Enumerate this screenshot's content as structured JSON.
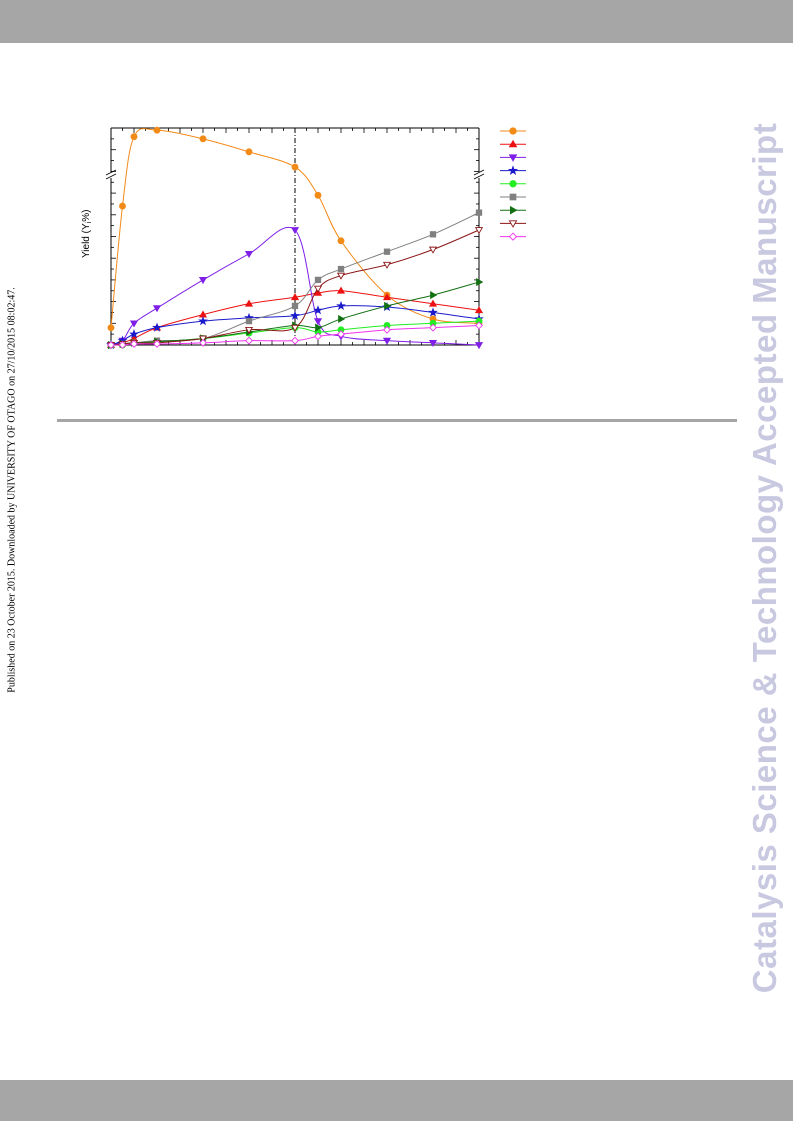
{
  "page": {
    "side_note": "Published on 23 October 2015. Downloaded by UNIVERSITY OF OTAGO on 27/10/2015 08:02:47.",
    "watermark": "Catalysis Science & Technology Accepted Manuscript",
    "colors": {
      "bars": "#a6a6a6",
      "watermark": "#c8c8e0"
    }
  },
  "chart_data": {
    "type": "line",
    "title": "",
    "xlabel": "",
    "ylabel": "Yield (Y",
    "ylabel_sub": "i",
    "ylabel_end": "%)",
    "axis_break": true,
    "reaction_switch_x": 8,
    "xlim": [
      0,
      16
    ],
    "ylim": [
      0,
      100
    ],
    "legend_position": "right",
    "series": [
      {
        "color": "#f28a18",
        "marker": "circle-filled",
        "x": [
          0,
          0.5,
          1,
          2,
          4,
          6,
          8,
          9,
          10,
          12,
          14,
          16
        ],
        "y": [
          8,
          64,
          96,
          99,
          95,
          89,
          82,
          69,
          48,
          23,
          12,
          10
        ]
      },
      {
        "color": "#ee1111",
        "marker": "triangle-up-filled",
        "x": [
          0,
          0.5,
          1,
          2,
          4,
          6,
          8,
          9,
          10,
          12,
          14,
          16
        ],
        "y": [
          0,
          1,
          3,
          8,
          14,
          19,
          22,
          24,
          25,
          22,
          19,
          16
        ]
      },
      {
        "color": "#7f1fe8",
        "marker": "triangle-down-filled",
        "x": [
          0,
          0.5,
          1,
          2,
          4,
          6,
          8,
          9,
          10,
          12,
          14,
          16
        ],
        "y": [
          0,
          2,
          10,
          17,
          30,
          42,
          53,
          11,
          4,
          2,
          1,
          0
        ]
      },
      {
        "color": "#1a1acc",
        "marker": "star-filled",
        "x": [
          0,
          0.5,
          1,
          2,
          4,
          6,
          8,
          9,
          10,
          12,
          14,
          16
        ],
        "y": [
          0,
          2,
          5,
          8,
          11,
          12.5,
          13.5,
          16,
          18,
          17.5,
          15,
          12
        ]
      },
      {
        "color": "#22ee22",
        "marker": "circle-filled",
        "x": [
          0,
          0.5,
          1,
          2,
          4,
          6,
          8,
          9,
          10,
          12,
          14,
          16
        ],
        "y": [
          0,
          0,
          1,
          1.5,
          3,
          5.5,
          8,
          6,
          7,
          9,
          10,
          11
        ]
      },
      {
        "color": "#808080",
        "marker": "square-filled",
        "x": [
          0,
          0.5,
          1,
          2,
          4,
          6,
          8,
          9,
          10,
          12,
          14,
          16
        ],
        "y": [
          0,
          0.5,
          1,
          2,
          3,
          11,
          18,
          30,
          35,
          43,
          51,
          61
        ]
      },
      {
        "color": "#127012",
        "marker": "triangle-right-filled",
        "x": [
          0,
          0.5,
          1,
          2,
          4,
          6,
          8,
          9,
          10,
          12,
          14,
          16
        ],
        "y": [
          0,
          0.5,
          1,
          1.5,
          3,
          6,
          9,
          8,
          12,
          18,
          23,
          29
        ]
      },
      {
        "color": "#8b1515",
        "marker": "triangle-down-open",
        "x": [
          0,
          0.5,
          1,
          2,
          4,
          6,
          8,
          9,
          10,
          12,
          14,
          16
        ],
        "y": [
          0,
          0.5,
          1,
          1,
          3,
          7,
          8,
          26,
          32,
          37,
          44,
          53
        ]
      },
      {
        "color": "#ee33ee",
        "marker": "diamond-open",
        "x": [
          0,
          0.5,
          1,
          2,
          4,
          6,
          8,
          9,
          10,
          12,
          14,
          16
        ],
        "y": [
          0,
          0,
          0.5,
          0.5,
          1,
          2,
          2,
          4,
          5,
          7,
          8,
          9
        ]
      }
    ]
  }
}
